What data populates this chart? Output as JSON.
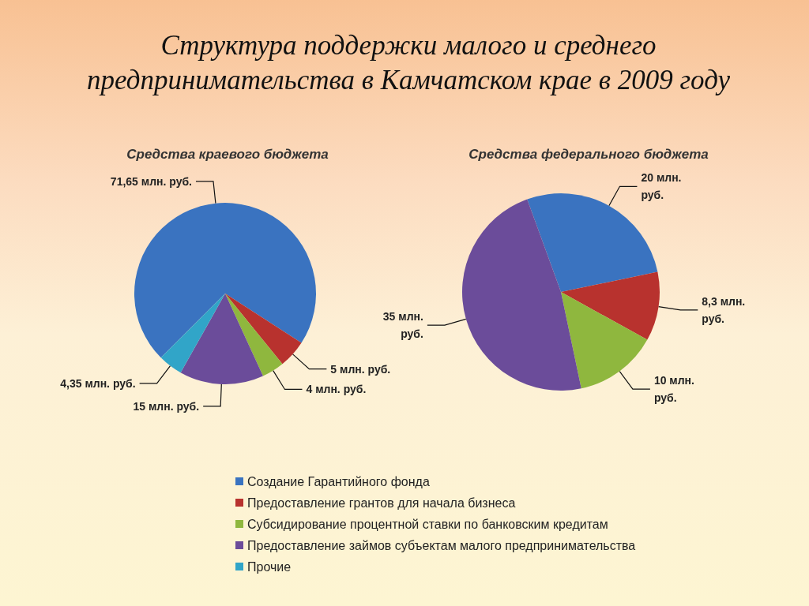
{
  "chart_data": [
    {
      "type": "pie",
      "title": "Структура поддержки малого и среднего предпринимательства в Камчатском крае в 2009 году",
      "subtitle": "Средства краевого бюджета",
      "categories": [
        "Создание Гарантийного фонда",
        "Предоставление грантов для начала бизнеса",
        "Субсидирование процентной ставки по банковским кредитам",
        "Предоставление займов субъектам малого предпринимательства",
        "Прочие"
      ],
      "values": [
        71.65,
        5,
        4,
        15,
        4.35
      ],
      "colors": [
        "#3a73c0",
        "#b8322e",
        "#8fb73e",
        "#6b4c9a",
        "#31a5c8"
      ],
      "value_labels": [
        "71,65 млн. руб.",
        "5 млн. руб.",
        "4 млн. руб.",
        "15 млн. руб.",
        "4,35 млн. руб."
      ],
      "legend": "bottom"
    },
    {
      "type": "pie",
      "title": "Средства федерального бюджета",
      "categories": [
        null,
        null,
        null,
        null
      ],
      "values": [
        20,
        8.3,
        10,
        35
      ],
      "colors": [
        "#3a73c0",
        "#b8322e",
        "#8fb73e",
        "#6b4c9a"
      ],
      "value_labels": [
        "20 млн. руб.",
        "8,3 млн. руб.",
        "10 млн. руб.",
        "35 млн. руб."
      ]
    }
  ]
}
